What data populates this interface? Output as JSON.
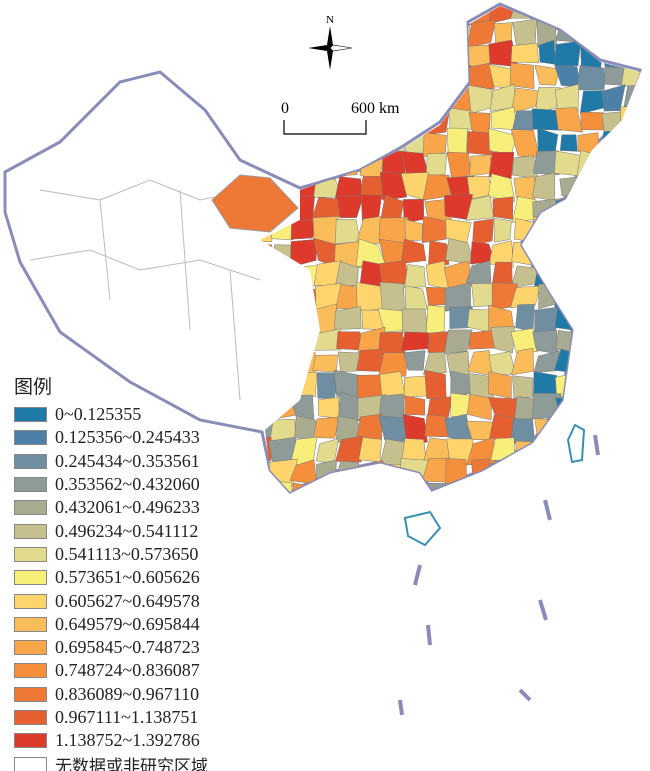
{
  "compass": {
    "north_label": "N"
  },
  "scale_bar": {
    "start": "0",
    "end": "600 km"
  },
  "legend": {
    "title": "图例",
    "items": [
      {
        "label": "0~0.125355",
        "color": "#1f7aa8"
      },
      {
        "label": "0.125356~0.245433",
        "color": "#4c80a8"
      },
      {
        "label": "0.245434~0.353561",
        "color": "#6f8ea2"
      },
      {
        "label": "0.353562~0.432060",
        "color": "#8f9b98"
      },
      {
        "label": "0.432061~0.496233",
        "color": "#a8ab90"
      },
      {
        "label": "0.496234~0.541112",
        "color": "#c5c08e"
      },
      {
        "label": "0.541113~0.573650",
        "color": "#e2da8c"
      },
      {
        "label": "0.573651~0.605626",
        "color": "#f8ee7a"
      },
      {
        "label": "0.605627~0.649578",
        "color": "#fdd56c"
      },
      {
        "label": "0.649579~0.695844",
        "color": "#fbbd5a"
      },
      {
        "label": "0.695845~0.748723",
        "color": "#f9a64a"
      },
      {
        "label": "0.748724~0.836087",
        "color": "#f58f3c"
      },
      {
        "label": "0.836089~0.967110",
        "color": "#ee7836"
      },
      {
        "label": "0.967111~1.138751",
        "color": "#e55f30"
      },
      {
        "label": "1.138752~1.392786",
        "color": "#de3a2c"
      },
      {
        "label": "无数据或非研究区域",
        "color": "#ffffff"
      }
    ]
  }
}
